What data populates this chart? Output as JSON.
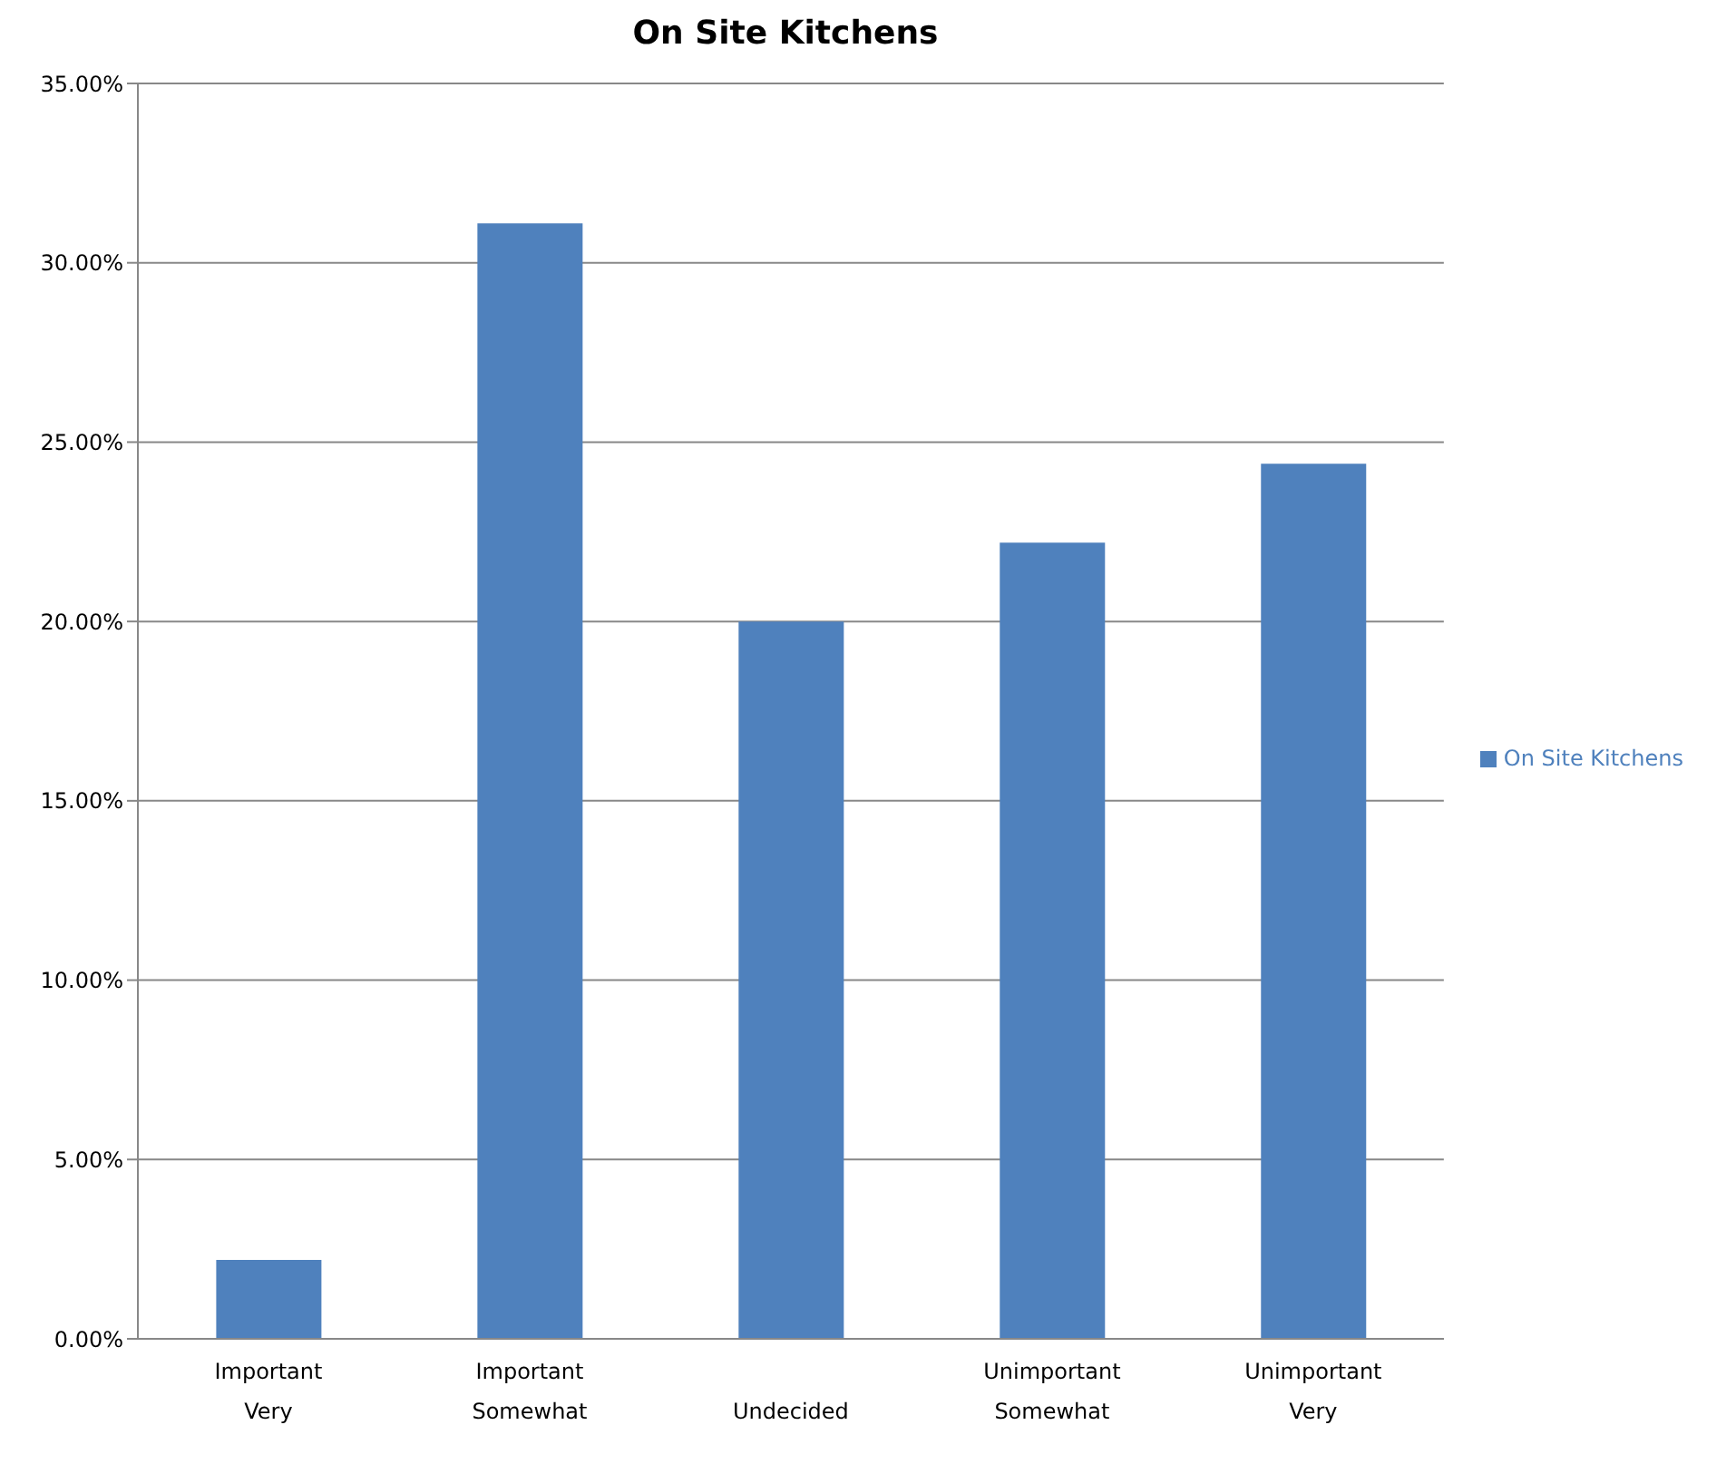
{
  "chart_data": {
    "type": "bar",
    "title": "On Site Kitchens",
    "categories": [
      "Important\nVery",
      "Important\nSomewhat",
      "\nUndecided",
      "Unimportant\nSomewhat",
      "Unimportant\nVery"
    ],
    "series": [
      {
        "name": "On Site Kitchens",
        "color": "#4f81bd",
        "values": [
          2.2,
          31.1,
          20.0,
          22.2,
          24.4
        ]
      }
    ],
    "ylim": [
      0,
      35
    ],
    "yticks": [
      {
        "value": 0,
        "label": "0.00%"
      },
      {
        "value": 5,
        "label": "5.00%"
      },
      {
        "value": 10,
        "label": "10.00%"
      },
      {
        "value": 15,
        "label": "15.00%"
      },
      {
        "value": 20,
        "label": "20.00%"
      },
      {
        "value": 25,
        "label": "25.00%"
      },
      {
        "value": 30,
        "label": "30.00%"
      },
      {
        "value": 35,
        "label": "35.00%"
      }
    ],
    "grid": "y",
    "legend": "right"
  }
}
